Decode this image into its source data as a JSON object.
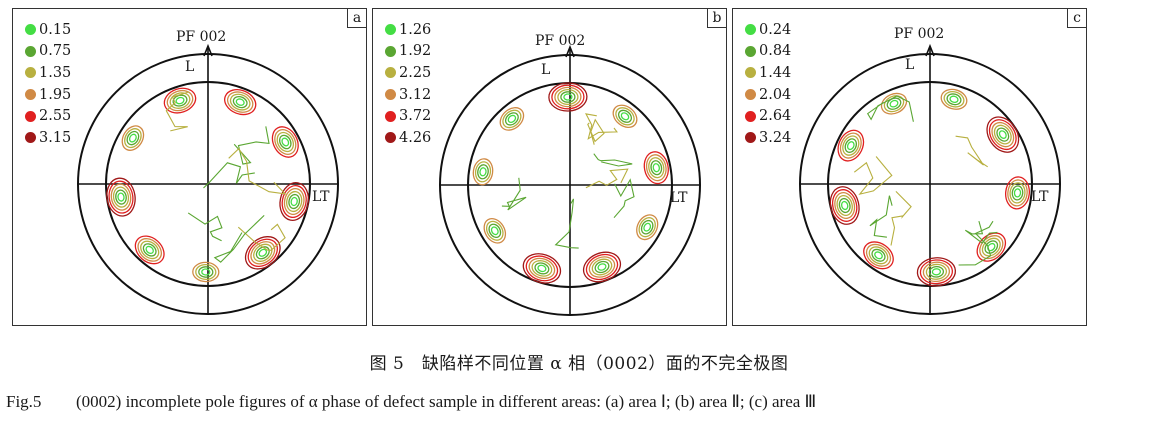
{
  "figure": {
    "panels": [
      {
        "letter": "a",
        "pf_label": "PF 002",
        "top_axis_label": "L",
        "right_axis_label": "LT",
        "legend": [
          {
            "value": "0.15",
            "color": "#44dd44"
          },
          {
            "value": "0.75",
            "color": "#5aa632"
          },
          {
            "value": "1.35",
            "color": "#b8b040"
          },
          {
            "value": "1.95",
            "color": "#d08a45"
          },
          {
            "value": "2.55",
            "color": "#e02020"
          },
          {
            "value": "3.15",
            "color": "#a01818"
          }
        ]
      },
      {
        "letter": "b",
        "pf_label": "PF 002",
        "top_axis_label": "L",
        "right_axis_label": "LT",
        "legend": [
          {
            "value": "1.26",
            "color": "#44dd44"
          },
          {
            "value": "1.92",
            "color": "#5aa632"
          },
          {
            "value": "2.25",
            "color": "#b8b040"
          },
          {
            "value": "3.12",
            "color": "#d08a45"
          },
          {
            "value": "3.72",
            "color": "#e02020"
          },
          {
            "value": "4.26",
            "color": "#a01818"
          }
        ]
      },
      {
        "letter": "c",
        "pf_label": "PF 002",
        "top_axis_label": "L",
        "right_axis_label": "LT",
        "legend": [
          {
            "value": "0.24",
            "color": "#44dd44"
          },
          {
            "value": "0.84",
            "color": "#5aa632"
          },
          {
            "value": "1.44",
            "color": "#b8b040"
          },
          {
            "value": "2.04",
            "color": "#d08a45"
          },
          {
            "value": "2.64",
            "color": "#e02020"
          },
          {
            "value": "3.24",
            "color": "#a01818"
          }
        ]
      }
    ],
    "caption_cn": "图 5　缺陷样不同位置 α 相（0002）面的不完全极图",
    "caption_en_label": "Fig.5",
    "caption_en_text": "(0002) incomplete pole figures of α phase of defect sample in different areas: (a) area Ⅰ; (b) area Ⅱ; (c) area  Ⅲ"
  }
}
